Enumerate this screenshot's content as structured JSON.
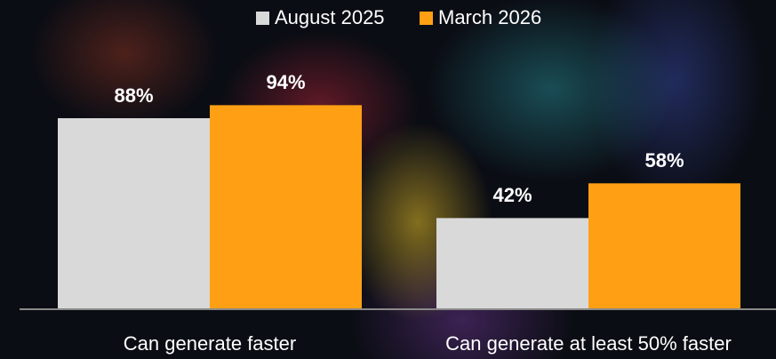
{
  "chart_data": {
    "type": "bar",
    "categories": [
      "Can generate faster",
      "Can generate at least 50% faster"
    ],
    "series": [
      {
        "name": "August 2025",
        "color": "#d9d9d9",
        "values": [
          88,
          42
        ],
        "value_labels": [
          "88%",
          "42%"
        ]
      },
      {
        "name": "March 2026",
        "color": "#ffa014",
        "values": [
          94,
          58
        ],
        "value_labels": [
          "94%",
          "58%"
        ]
      }
    ]
  }
}
